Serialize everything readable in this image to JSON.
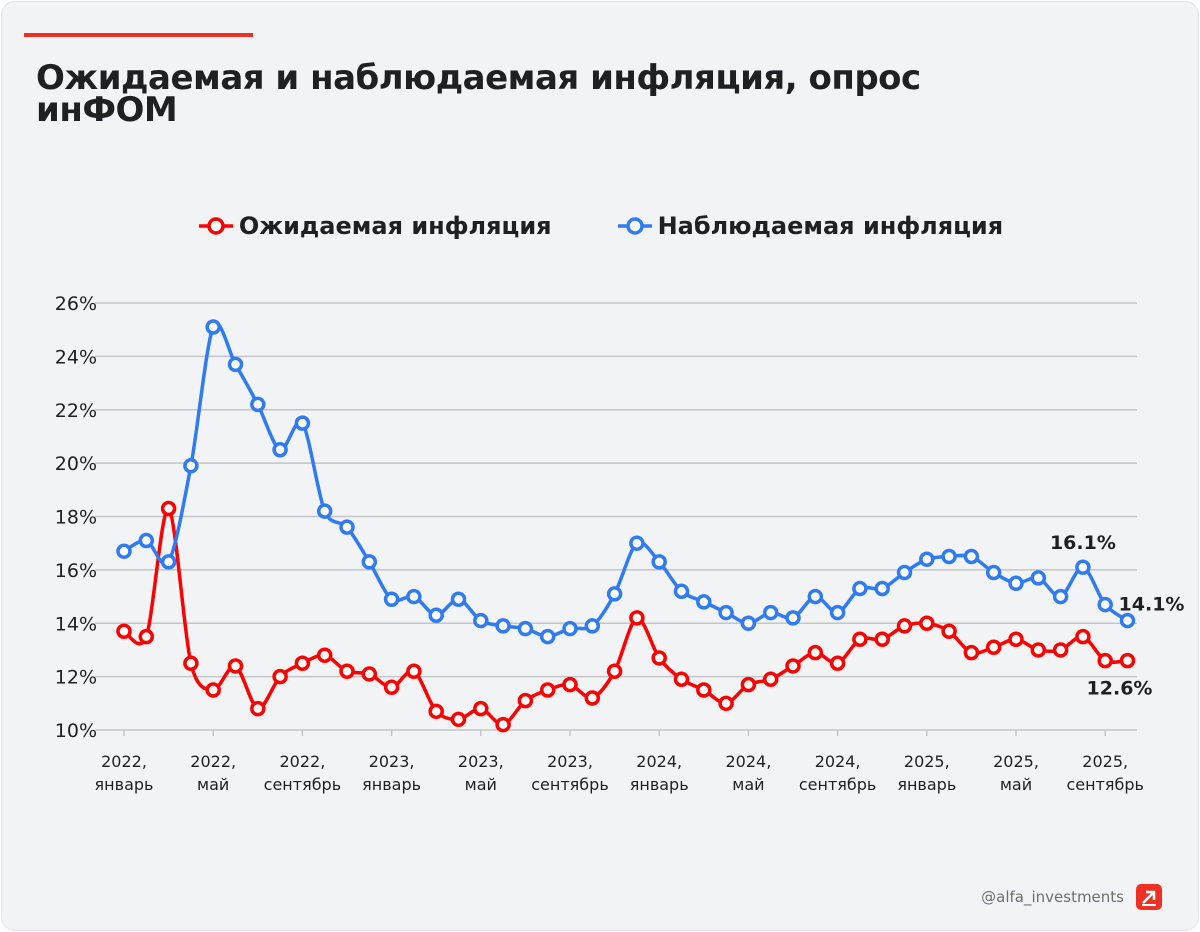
{
  "title": "Ожидаемая и наблюдаемая инфляция, опрос инФОМ",
  "footer": {
    "handle": "@alfa_investments",
    "logo_icon": "alfa-arrow-logo"
  },
  "colors": {
    "expected": "#ff0000",
    "observed": "#2f7bf5",
    "accent": "#ef3124"
  },
  "chart_data": {
    "type": "line",
    "title": "Ожидаемая и наблюдаемая инфляция, опрос инФОМ",
    "legend_position": "top",
    "grid": "horizontal",
    "ylim": [
      10,
      26
    ],
    "yticks": [
      "10%",
      "12%",
      "14%",
      "16%",
      "18%",
      "20%",
      "22%",
      "24%",
      "26%"
    ],
    "ytick_values": [
      10,
      12,
      14,
      16,
      18,
      20,
      22,
      24,
      26
    ],
    "x": [
      "2022-01",
      "2022-02",
      "2022-03",
      "2022-04",
      "2022-05",
      "2022-06",
      "2022-07",
      "2022-08",
      "2022-09",
      "2022-10",
      "2022-11",
      "2022-12",
      "2023-01",
      "2023-02",
      "2023-03",
      "2023-04",
      "2023-05",
      "2023-06",
      "2023-07",
      "2023-08",
      "2023-09",
      "2023-10",
      "2023-11",
      "2023-12",
      "2024-01",
      "2024-02",
      "2024-03",
      "2024-04",
      "2024-05",
      "2024-06",
      "2024-07",
      "2024-09",
      "2024-10",
      "2024-11",
      "2024-12",
      "2025-01",
      "2025-02",
      "2025-03",
      "2025-04",
      "2025-05",
      "2025-06",
      "2025-07",
      "2025-08",
      "2025-09",
      "2025-10",
      "2025-11"
    ],
    "xticks": [
      {
        "index": 0,
        "line1": "2022,",
        "line2": "январь"
      },
      {
        "index": 4,
        "line1": "2022,",
        "line2": "май"
      },
      {
        "index": 8,
        "line1": "2022,",
        "line2": "сентябрь"
      },
      {
        "index": 12,
        "line1": "2023,",
        "line2": "январь"
      },
      {
        "index": 16,
        "line1": "2023,",
        "line2": "май"
      },
      {
        "index": 20,
        "line1": "2023,",
        "line2": "сентябрь"
      },
      {
        "index": 24,
        "line1": "2024,",
        "line2": "январь"
      },
      {
        "index": 28,
        "line1": "2024,",
        "line2": "май"
      },
      {
        "index": 32,
        "line1": "2024,",
        "line2": "сентябрь"
      },
      {
        "index": 36,
        "line1": "2025,",
        "line2": "январь"
      },
      {
        "index": 40,
        "line1": "2025,",
        "line2": "май"
      },
      {
        "index": 44,
        "line1": "2025,",
        "line2": "сентябрь"
      }
    ],
    "series": [
      {
        "name": "Ожидаемая инфляция",
        "color": "#ff0000",
        "values": [
          13.7,
          13.5,
          18.3,
          12.5,
          11.5,
          12.4,
          10.8,
          12.0,
          12.5,
          12.8,
          12.2,
          12.1,
          11.6,
          12.2,
          10.7,
          10.4,
          10.8,
          10.2,
          11.1,
          11.5,
          11.7,
          11.2,
          12.2,
          14.2,
          12.7,
          11.9,
          11.5,
          11.0,
          11.7,
          11.9,
          12.4,
          12.9,
          12.5,
          13.4,
          13.4,
          13.9,
          14.0,
          13.7,
          12.9,
          13.1,
          13.4,
          13.0,
          13.0,
          13.5,
          12.6,
          12.6
        ]
      },
      {
        "name": "Наблюдаемая инфляция",
        "color": "#2f7bf5",
        "values": [
          16.7,
          17.1,
          16.3,
          19.9,
          25.1,
          23.7,
          22.2,
          20.5,
          21.5,
          18.2,
          17.6,
          16.3,
          14.9,
          15.0,
          14.3,
          14.9,
          14.1,
          13.9,
          13.8,
          13.5,
          13.8,
          13.9,
          15.1,
          17.0,
          16.3,
          15.2,
          14.8,
          14.4,
          14.0,
          14.4,
          14.2,
          15.0,
          14.4,
          15.3,
          15.3,
          15.9,
          16.4,
          16.5,
          16.5,
          15.9,
          15.5,
          15.7,
          15.0,
          16.1,
          14.7,
          14.1
        ]
      }
    ],
    "annotations": [
      {
        "series": 1,
        "index": 43,
        "text": "16.1%"
      },
      {
        "series": 1,
        "index": 45,
        "text": "14.1%"
      },
      {
        "series": 0,
        "index": 45,
        "text": "12.6%"
      }
    ]
  }
}
